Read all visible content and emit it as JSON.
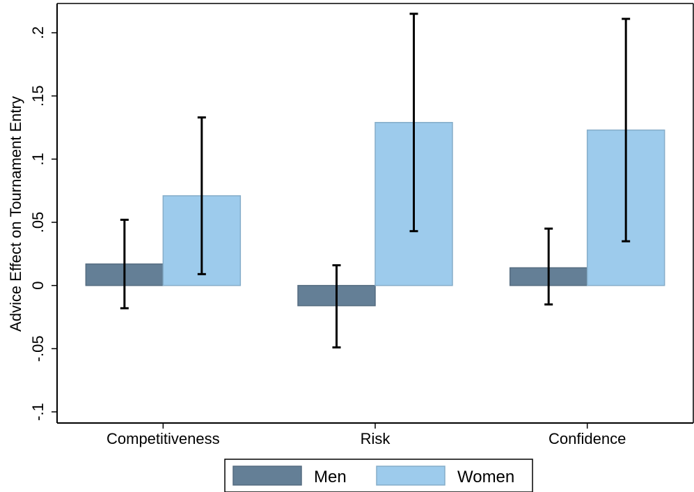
{
  "chart_data": {
    "type": "bar",
    "ylabel": "Advice Effect on Tournament Entry",
    "categories": [
      "Competitiveness",
      "Risk",
      "Confidence"
    ],
    "ylim": [
      -0.1,
      0.2
    ],
    "yticks": [
      {
        "value": -0.1,
        "label": "-.1"
      },
      {
        "value": -0.05,
        "label": "-.05"
      },
      {
        "value": 0,
        "label": "0"
      },
      {
        "value": 0.05,
        "label": ".05"
      },
      {
        "value": 0.1,
        "label": ".1"
      },
      {
        "value": 0.15,
        "label": ".15"
      },
      {
        "value": 0.2,
        "label": ".2"
      }
    ],
    "series": [
      {
        "name": "Men",
        "color": "#647f96",
        "values": [
          0.017,
          -0.016,
          0.014
        ],
        "ci_low": [
          -0.018,
          -0.049,
          -0.015
        ],
        "ci_high": [
          0.052,
          0.016,
          0.045
        ]
      },
      {
        "name": "Women",
        "color": "#9dcbec",
        "values": [
          0.071,
          0.129,
          0.123
        ],
        "ci_low": [
          0.009,
          0.043,
          0.035
        ],
        "ci_high": [
          0.133,
          0.215,
          0.211
        ]
      }
    ],
    "legend_position": "bottom",
    "grid": false
  }
}
